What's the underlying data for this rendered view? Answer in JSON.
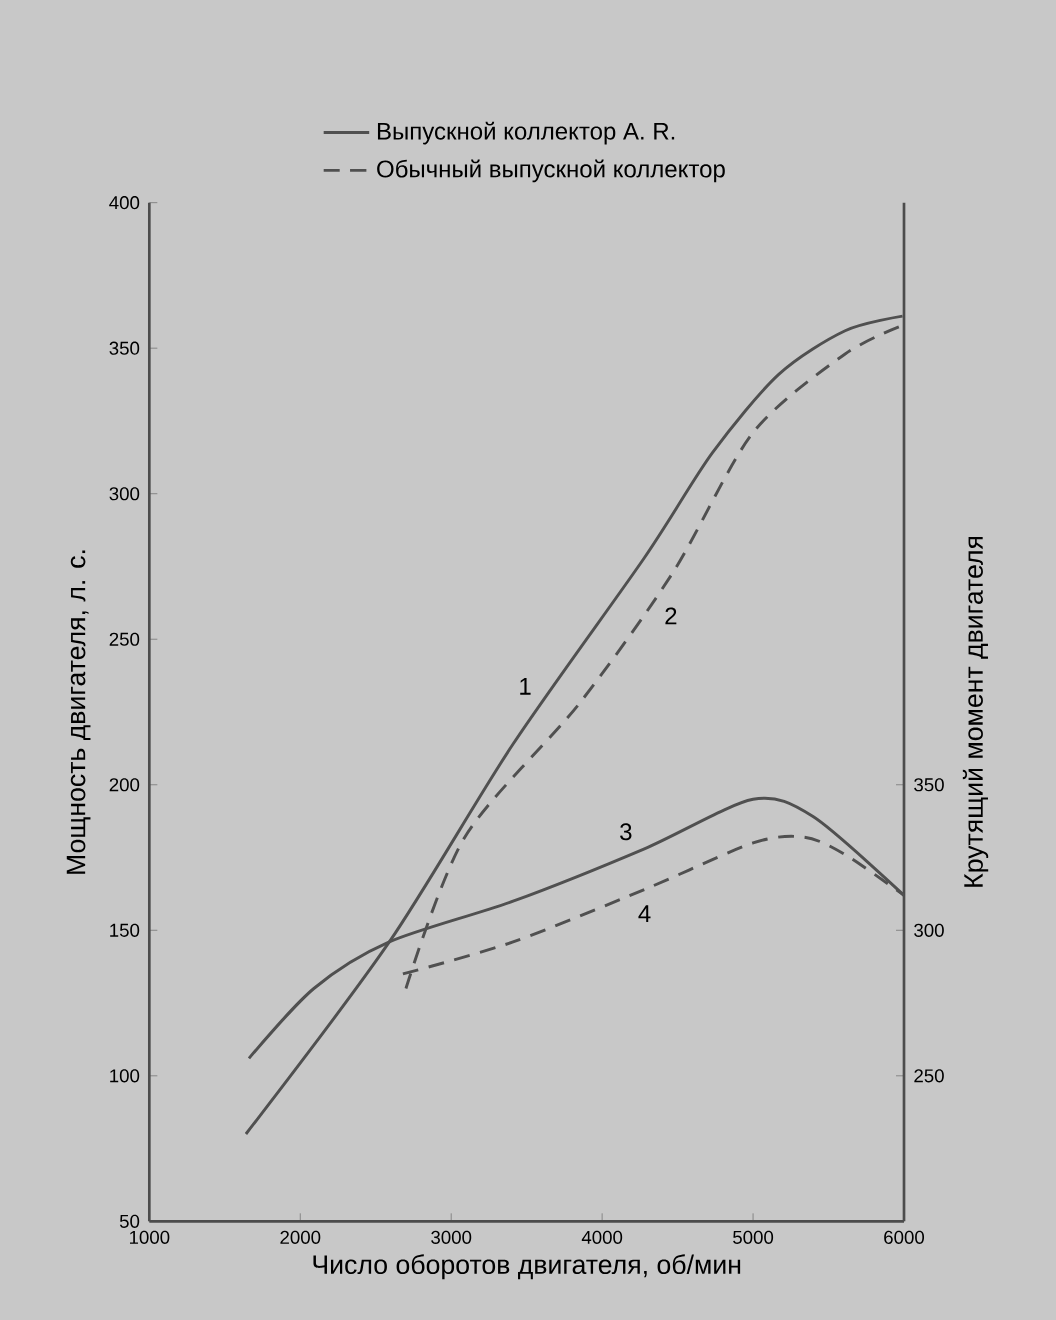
{
  "chart_data": {
    "type": "line",
    "xlabel": "Число оборотов двигателя, об/мин",
    "ylabel": "Мощность двигателя, л. с.",
    "y2label": "Крутящий момент двигателя",
    "xlim": [
      1000,
      6000
    ],
    "xticks": [
      1000,
      2000,
      3000,
      4000,
      5000,
      6000
    ],
    "ylim": [
      50,
      400
    ],
    "yticks": [
      50,
      100,
      150,
      200,
      250,
      300,
      350,
      400
    ],
    "y2lim": [
      200,
      550
    ],
    "y2ticks": [
      250,
      300,
      350
    ],
    "legend": "top",
    "marker": "none",
    "grid": false,
    "series": [
      {
        "name": "Выпускной коллектор A. R.",
        "color": "#505050",
        "line_style": "solid",
        "x": [
          1640,
          2590,
          3410,
          4280,
          4730,
          5170,
          5610,
          5990
        ],
        "values": [
          80,
          146,
          214,
          278,
          314,
          341,
          356,
          361
        ]
      },
      {
        "name": "Обычный выпускной коллектор",
        "color": "#505050",
        "line_style": "dashed",
        "x": [
          2700,
          3090,
          3850,
          4470,
          5000,
          5610,
          6000
        ],
        "values": [
          130,
          182,
          228,
          273,
          321,
          348,
          358
        ]
      },
      {
        "color": "#505050",
        "line_style": "solid",
        "axis": "y2",
        "x": [
          1660,
          2090,
          2590,
          3410,
          4280,
          5000,
          5400,
          6000
        ],
        "values": [
          256,
          280,
          296,
          310,
          328,
          345,
          339,
          312
        ]
      },
      {
        "color": "#505050",
        "line_style": "dashed",
        "axis": "y2",
        "x": [
          2680,
          3410,
          4280,
          5000,
          5340,
          5610,
          6000
        ],
        "values": [
          285,
          296,
          314,
          330,
          332,
          326,
          312
        ]
      }
    ],
    "annotations": [
      "1",
      "2",
      "3",
      "4"
    ]
  }
}
